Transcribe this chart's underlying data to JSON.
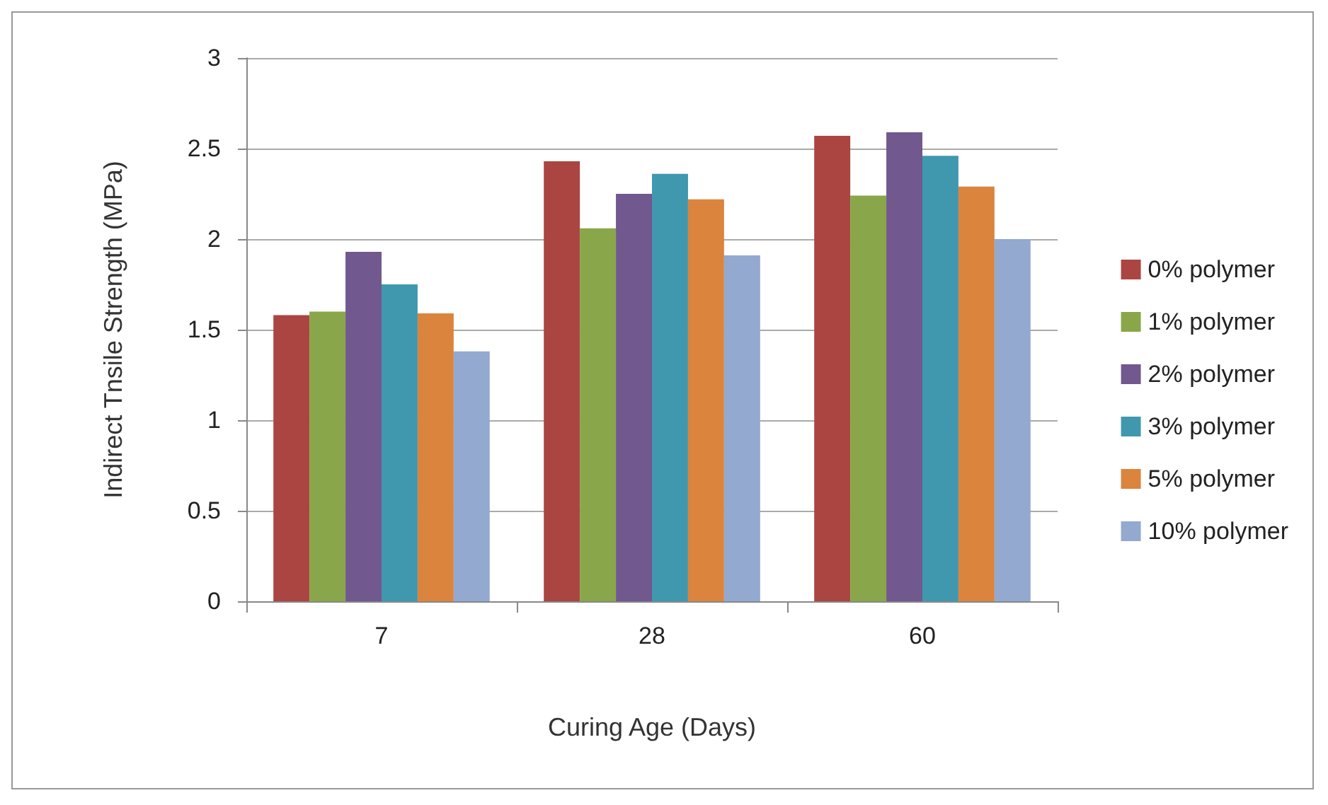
{
  "chart_data": {
    "type": "bar",
    "xlabel": "Curing Age (Days)",
    "ylabel": "Indirect Tnsile Strength (MPa)",
    "categories": [
      "7",
      "28",
      "60"
    ],
    "series": [
      {
        "name": "0% polymer",
        "color": "#ab4542",
        "values": [
          1.58,
          2.43,
          2.57
        ]
      },
      {
        "name": "1% polymer",
        "color": "#8aa64a",
        "values": [
          1.6,
          2.06,
          2.24
        ]
      },
      {
        "name": "2% polymer",
        "color": "#71588f",
        "values": [
          1.93,
          2.25,
          2.59
        ]
      },
      {
        "name": "3% polymer",
        "color": "#4098af",
        "values": [
          1.75,
          2.36,
          2.46
        ]
      },
      {
        "name": "5% polymer",
        "color": "#db843d",
        "values": [
          1.59,
          2.22,
          2.29
        ]
      },
      {
        "name": "10% polymer",
        "color": "#93a9cf",
        "values": [
          1.38,
          1.91,
          2.0
        ]
      }
    ],
    "ylim": [
      0,
      3
    ],
    "yticks": [
      0,
      0.5,
      1,
      1.5,
      2,
      2.5,
      3
    ],
    "grid": "y",
    "legend": "right"
  }
}
